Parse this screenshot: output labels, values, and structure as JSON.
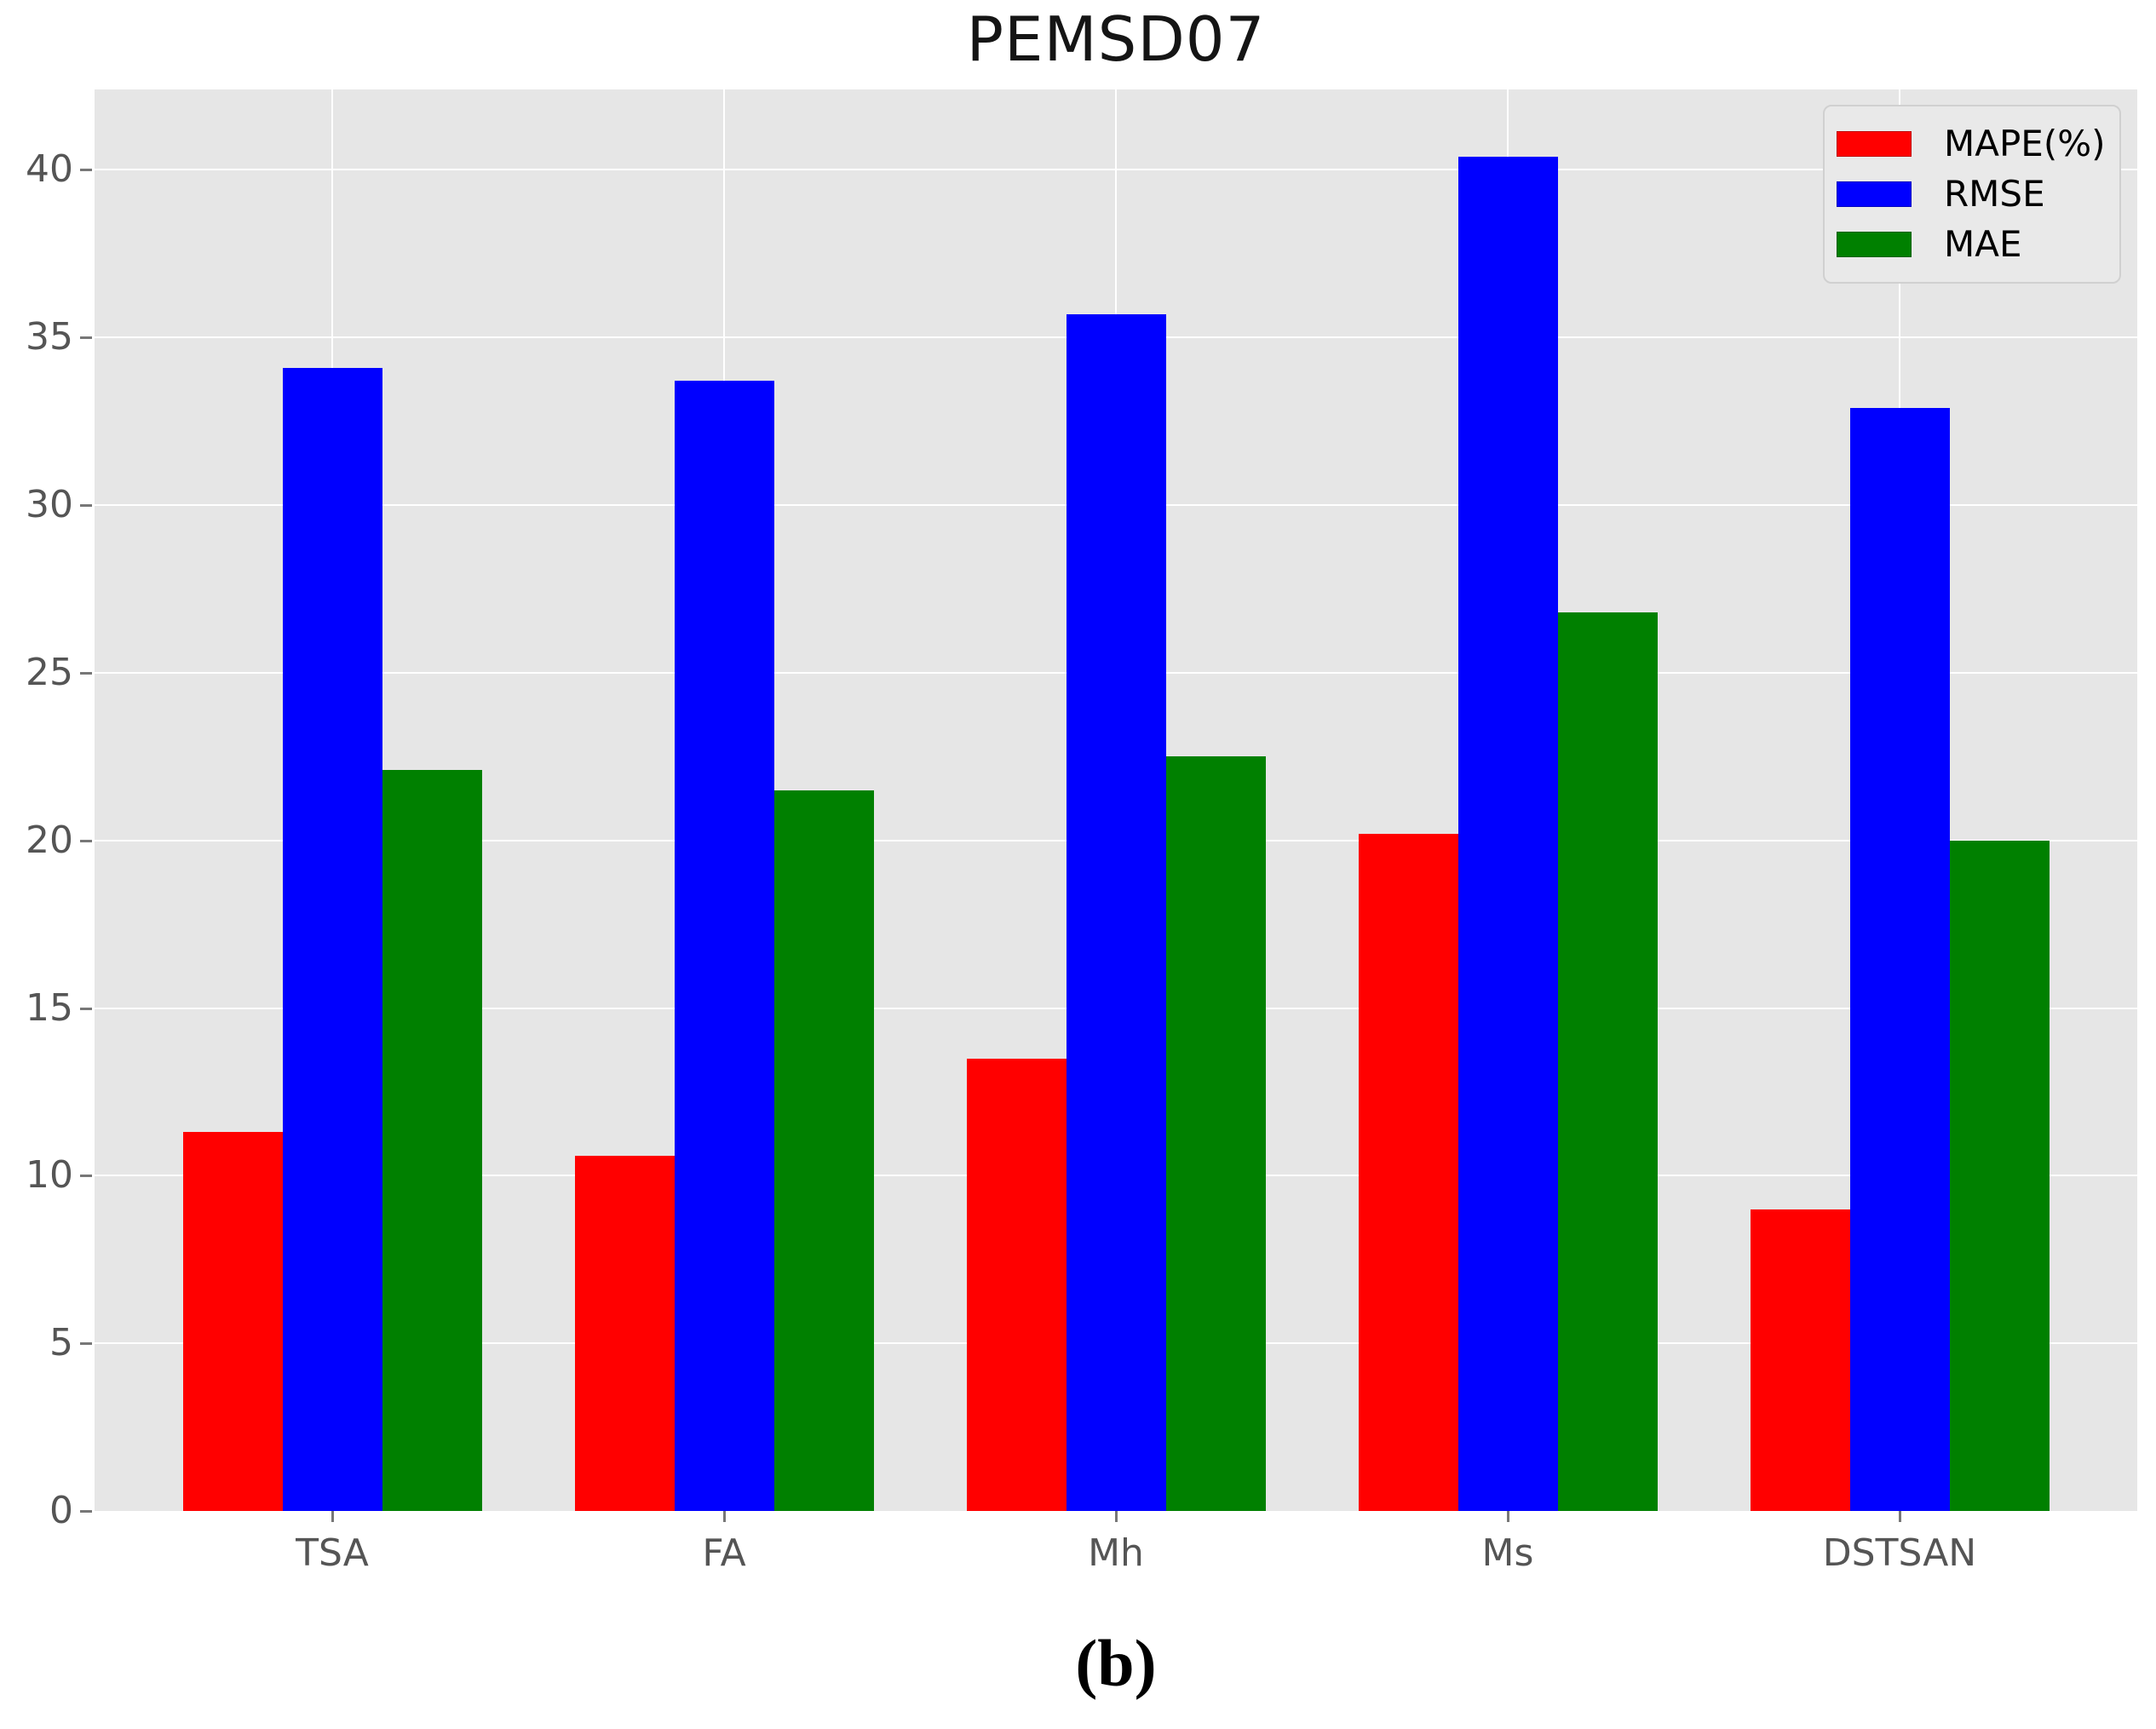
{
  "caption": "(b)",
  "chart_data": {
    "type": "bar",
    "title": "PEMSD07",
    "categories": [
      "TSA",
      "FA",
      "Mh",
      "Ms",
      "DSTSAN"
    ],
    "series": [
      {
        "name": "MAPE(%)",
        "color": "#ff0000",
        "values": [
          11.3,
          10.6,
          13.5,
          20.2,
          9.0
        ]
      },
      {
        "name": "RMSE",
        "color": "#0000ff",
        "values": [
          34.1,
          33.7,
          35.7,
          40.4,
          32.9
        ]
      },
      {
        "name": "MAE",
        "color": "#008000",
        "values": [
          22.1,
          21.5,
          22.5,
          26.8,
          20.0
        ]
      }
    ],
    "xlabel": "",
    "ylabel": "",
    "ylim": [
      0,
      42.4
    ],
    "yticks": [
      0,
      5,
      10,
      15,
      20,
      25,
      30,
      35,
      40
    ],
    "grid": true,
    "legend_position": "upper right",
    "plot_background": "#e6e6e6",
    "gridline_color": "#ffffff",
    "tick_label_color": "#555555"
  }
}
